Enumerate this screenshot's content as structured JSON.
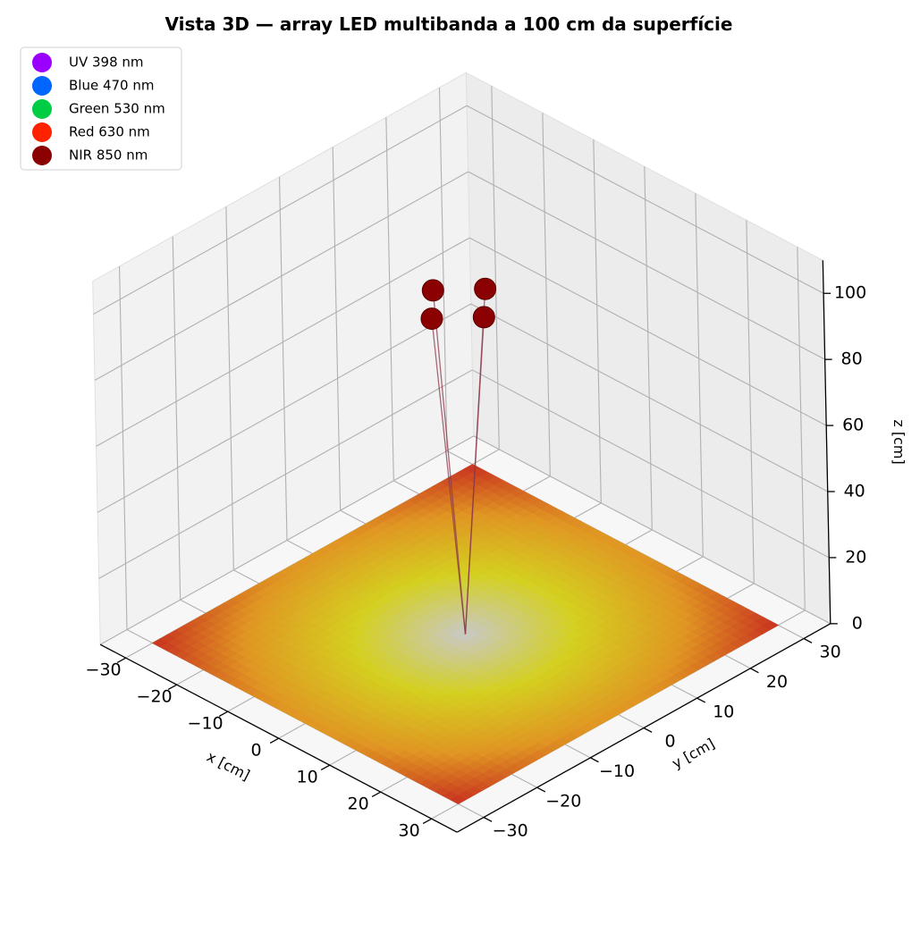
{
  "chart_data": {
    "type": "scatter",
    "subtype": "3d-surface-with-markers",
    "title": "Vista 3D — array LED multibanda a 100 cm da superfície",
    "xlabel": "x [cm]",
    "ylabel": "y [cm]",
    "zlabel": "z [cm]",
    "xlim": [
      -35,
      35
    ],
    "ylim": [
      -35,
      35
    ],
    "zlim": [
      0,
      110
    ],
    "x_ticks": [
      -30,
      -20,
      -10,
      0,
      10,
      20,
      30
    ],
    "y_ticks": [
      -30,
      -20,
      -10,
      0,
      10,
      20,
      30
    ],
    "z_ticks": [
      0,
      20,
      40,
      60,
      80,
      100
    ],
    "x_tick_labels": [
      "−30",
      "−20",
      "−10",
      "0",
      "10",
      "20",
      "30"
    ],
    "y_tick_labels": [
      "−30",
      "−20",
      "−10",
      "0",
      "10",
      "20",
      "30"
    ],
    "z_tick_labels": [
      "0",
      "20",
      "40",
      "60",
      "80",
      "100"
    ],
    "grid": true,
    "legend_position": "top-left",
    "legend": [
      {
        "label": "UV 398 nm",
        "color": "#9900ff"
      },
      {
        "label": "Blue 470 nm",
        "color": "#0066ff"
      },
      {
        "label": "Green 530 nm",
        "color": "#00cc44"
      },
      {
        "label": "Red 630 nm",
        "color": "#ff2200"
      },
      {
        "label": "NIR 850 nm",
        "color": "#8b0000"
      }
    ],
    "emitters": [
      {
        "x": -5,
        "y": 0,
        "z": 100
      },
      {
        "x": 0,
        "y": 5,
        "z": 100
      },
      {
        "x": 5,
        "y": 0,
        "z": 100
      },
      {
        "x": 0,
        "y": -5,
        "z": 100
      }
    ],
    "beam_target": {
      "x": 0,
      "y": 0,
      "z": 0
    },
    "surface": {
      "z": 0,
      "extent": [
        -30,
        30
      ],
      "colormap": [
        "#c8c8c8",
        "#d4d020",
        "#e0a020",
        "#c83020"
      ]
    },
    "colors": {
      "pane_left": "#f2f2f2",
      "pane_right": "#ececec",
      "pane_floor": "#f7f7f7",
      "grid": "#b0b0b0",
      "beam": "#8b3a4a"
    }
  }
}
